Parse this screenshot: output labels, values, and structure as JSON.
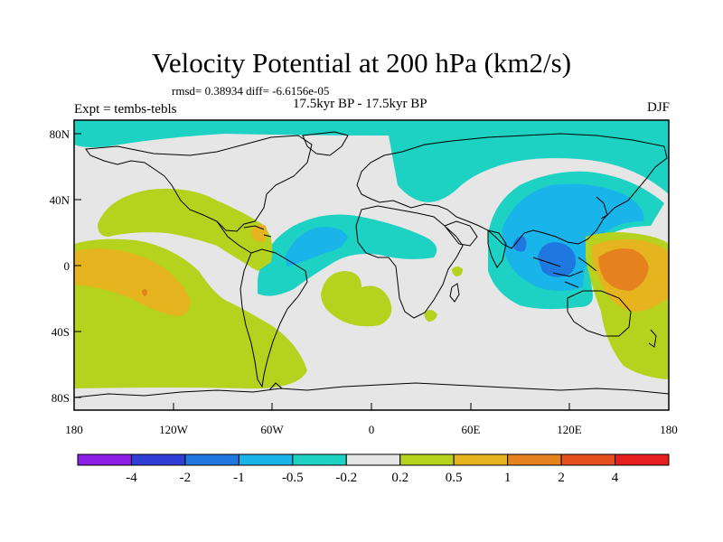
{
  "title": "Velocity Potential at 200 hPa (km2/s)",
  "stats": "rmsd= 0.38934 diff= -6.6156e-05",
  "experiment_label": "Expt = tembs-tebls",
  "period_label": "17.5kyr BP - 17.5kyr BP",
  "season_label": "DJF",
  "map": {
    "longitude_ticks": [
      "180",
      "120W",
      "60W",
      "0",
      "60E",
      "120E",
      "180"
    ],
    "latitude_ticks": [
      "80N",
      "40N",
      "0",
      "40S",
      "80S"
    ],
    "background_color": "#e6e6e6"
  },
  "colorbar": {
    "colors": [
      "#8c1ee6",
      "#2f3fd6",
      "#1e78e0",
      "#19b4ea",
      "#1ed2c3",
      "#e6e6e6",
      "#b4d21e",
      "#e6b41e",
      "#e6821e",
      "#e6501e",
      "#e61e1e"
    ],
    "labels": [
      "-4",
      "-2",
      "-1",
      "-0.5",
      "-0.2",
      "0.2",
      "0.5",
      "1",
      "2",
      "4"
    ]
  }
}
